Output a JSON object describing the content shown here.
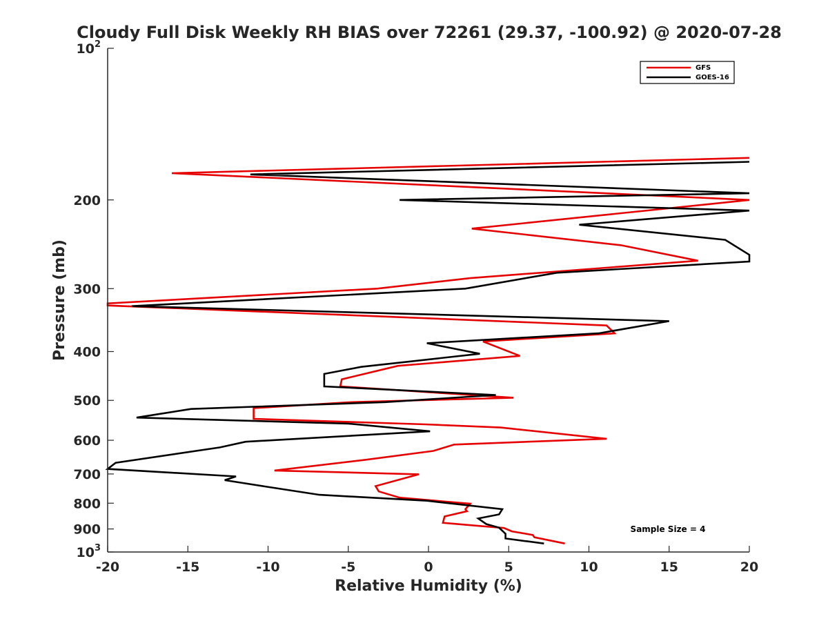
{
  "chart_data": {
    "type": "line",
    "title": "Cloudy Full Disk Weekly RH BIAS over 72261 (29.37, -100.92) @ 2020-07-28",
    "xlabel": "Relative Humidity (%)",
    "ylabel": "Pressure (mb)",
    "xlim": [
      -20,
      20
    ],
    "ylim": [
      100,
      1000
    ],
    "yscale": "log",
    "y_reversed": true,
    "grid": false,
    "legend_position": "top-right",
    "x_ticks": [
      "-20",
      "-15",
      "-10",
      "-5",
      "0",
      "5",
      "10",
      "15",
      "20"
    ],
    "y_ticks": [
      {
        "value": 100,
        "base": "10",
        "exp": "2"
      },
      {
        "value": 200,
        "label": "200"
      },
      {
        "value": 300,
        "label": "300"
      },
      {
        "value": 400,
        "label": "400"
      },
      {
        "value": 500,
        "label": "500"
      },
      {
        "value": 600,
        "label": "600"
      },
      {
        "value": 700,
        "label": "700"
      },
      {
        "value": 800,
        "label": "800"
      },
      {
        "value": 900,
        "label": "900"
      },
      {
        "value": 1000,
        "base": "10",
        "exp": "3"
      }
    ],
    "annotation": "Sample Size = 4",
    "series": [
      {
        "name": "GFS",
        "color": "#e60000",
        "points": [
          [
            20.3,
            165
          ],
          [
            -16.0,
            177
          ],
          [
            20.0,
            200
          ],
          [
            2.7,
            228
          ],
          [
            12.0,
            246
          ],
          [
            16.8,
            264
          ],
          [
            2.6,
            286
          ],
          [
            -3.2,
            300
          ],
          [
            -20.0,
            321
          ],
          [
            -20.0,
            324
          ],
          [
            11.1,
            355
          ],
          [
            11.6,
            368
          ],
          [
            3.4,
            382
          ],
          [
            5.7,
            408
          ],
          [
            -1.9,
            427
          ],
          [
            -5.4,
            454
          ],
          [
            -5.5,
            469
          ],
          [
            5.3,
            494
          ],
          [
            -4.8,
            504
          ],
          [
            -10.9,
            518
          ],
          [
            -10.9,
            544
          ],
          [
            -0.2,
            558
          ],
          [
            4.5,
            566
          ],
          [
            11.1,
            596
          ],
          [
            1.6,
            612
          ],
          [
            0.3,
            630
          ],
          [
            -3.9,
            656
          ],
          [
            -9.6,
            689
          ],
          [
            -0.6,
            701
          ],
          [
            -3.3,
            740
          ],
          [
            -3.1,
            758
          ],
          [
            -1.8,
            780
          ],
          [
            2.6,
            802
          ],
          [
            2.3,
            822
          ],
          [
            2.4,
            830
          ],
          [
            1.0,
            850
          ],
          [
            0.9,
            875
          ],
          [
            2.7,
            885
          ],
          [
            4.7,
            896
          ],
          [
            5.2,
            910
          ],
          [
            6.5,
            925
          ],
          [
            6.6,
            935
          ],
          [
            8.5,
            962
          ]
        ]
      },
      {
        "name": "GOES-16",
        "color": "#000000",
        "points": [
          [
            20.3,
            168
          ],
          [
            -11.1,
            178
          ],
          [
            20.0,
            194
          ],
          [
            -1.8,
            200
          ],
          [
            20.0,
            210
          ],
          [
            9.4,
            224
          ],
          [
            18.5,
            240
          ],
          [
            20.0,
            257
          ],
          [
            20.0,
            265
          ],
          [
            8.0,
            279
          ],
          [
            2.3,
            300
          ],
          [
            -18.5,
            325
          ],
          [
            15.0,
            348
          ],
          [
            10.6,
            368
          ],
          [
            -0.1,
            385
          ],
          [
            3.2,
            404
          ],
          [
            -4.2,
            429
          ],
          [
            -6.5,
            443
          ],
          [
            -6.5,
            469
          ],
          [
            4.2,
            488
          ],
          [
            -2.7,
            504
          ],
          [
            -14.8,
            520
          ],
          [
            -18.2,
            541
          ],
          [
            -5.0,
            556
          ],
          [
            0.1,
            576
          ],
          [
            -11.4,
            604
          ],
          [
            -13.0,
            620
          ],
          [
            -19.5,
            665
          ],
          [
            -20.0,
            684
          ],
          [
            -12.0,
            708
          ],
          [
            -12.7,
            720
          ],
          [
            -10.2,
            741
          ],
          [
            -6.8,
            770
          ],
          [
            -0.1,
            791
          ],
          [
            4.6,
            822
          ],
          [
            4.4,
            842
          ],
          [
            3.1,
            858
          ],
          [
            3.6,
            880
          ],
          [
            4.4,
            895
          ],
          [
            4.8,
            920
          ],
          [
            4.8,
            940
          ],
          [
            7.2,
            962
          ]
        ]
      }
    ]
  }
}
